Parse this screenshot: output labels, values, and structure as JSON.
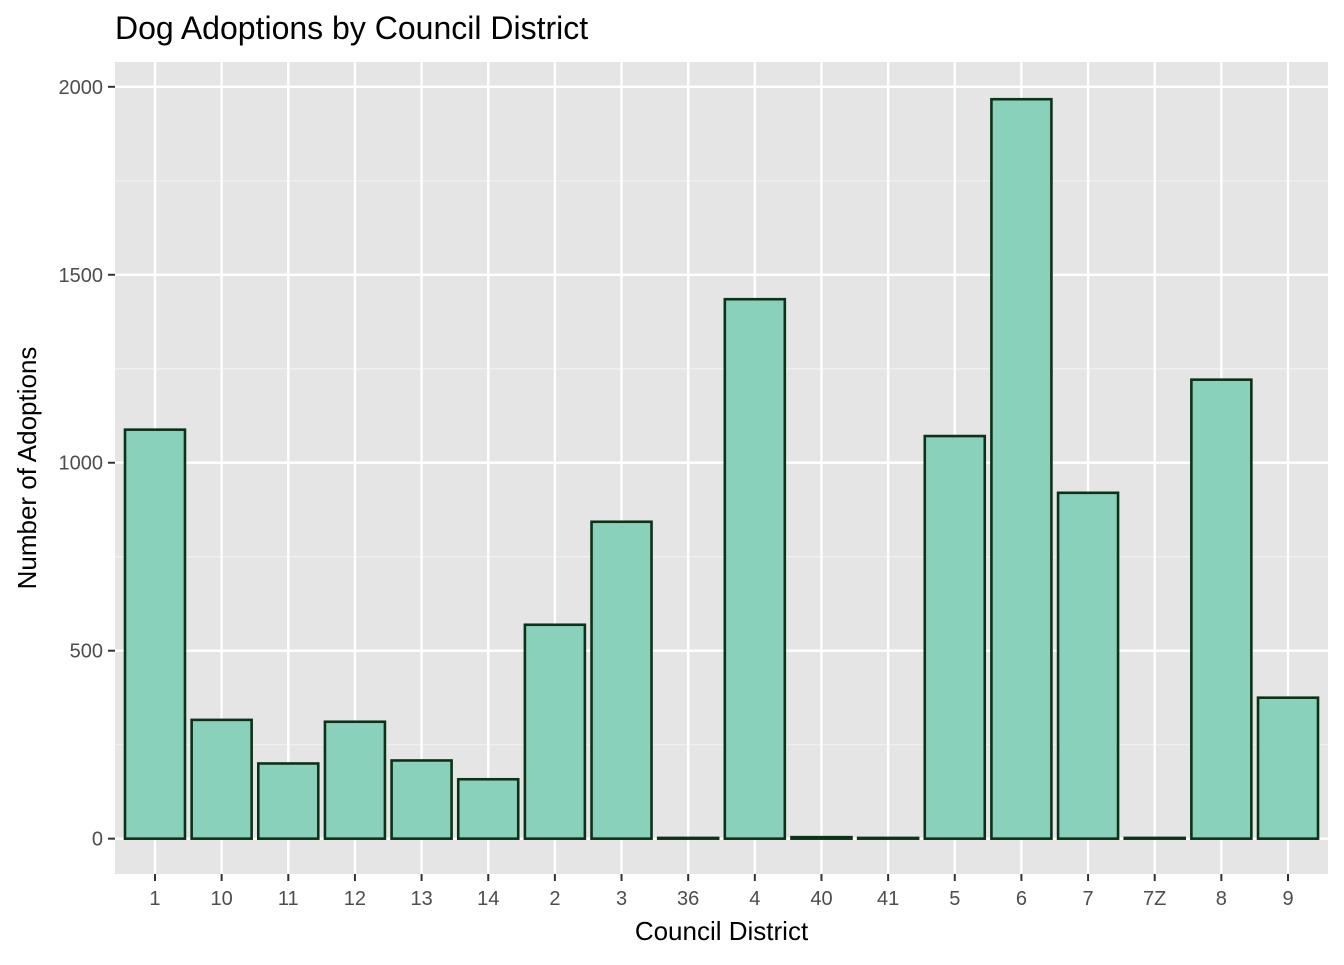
{
  "chart_data": {
    "type": "bar",
    "title": "Dog Adoptions by Council District",
    "xlabel": "Council District",
    "ylabel": "Number of Adoptions",
    "categories": [
      "1",
      "10",
      "11",
      "12",
      "13",
      "14",
      "2",
      "3",
      "36",
      "4",
      "40",
      "41",
      "5",
      "6",
      "7",
      "7Z",
      "8",
      "9"
    ],
    "values": [
      1088,
      316,
      200,
      311,
      208,
      158,
      569,
      843,
      2,
      1435,
      4,
      2,
      1071,
      1967,
      920,
      2,
      1221,
      375
    ],
    "ylim": [
      -94,
      2066
    ],
    "yticks": [
      0,
      500,
      1000,
      1500,
      2000
    ],
    "grid": true,
    "legend": "none",
    "colors": {
      "bar_fill": "#8ad1bb",
      "bar_outline": "#0c3218",
      "panel_background": "#e5e5e5",
      "grid_major": "#ffffff",
      "grid_minor": "#f2f2f2"
    }
  }
}
